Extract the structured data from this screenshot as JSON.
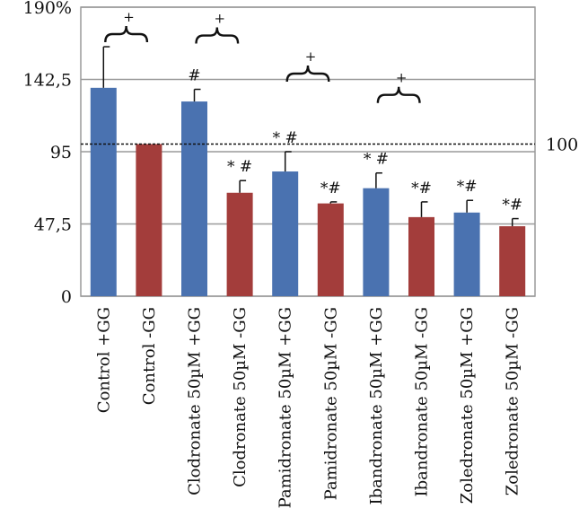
{
  "chart_data": {
    "type": "bar",
    "ylim": [
      0,
      190
    ],
    "y_ticks": [
      {
        "value": 0,
        "label": "0"
      },
      {
        "value": 47.5,
        "label": "47,5"
      },
      {
        "value": 95,
        "label": "95"
      },
      {
        "value": 142.5,
        "label": "142,5"
      },
      {
        "value": 190,
        "label": "190%"
      }
    ],
    "grid": true,
    "reference_line": {
      "value": 100,
      "label": "100",
      "style": "dashed"
    },
    "colors": {
      "+GG": "#4a72b0",
      "-GG": "#a33d3b"
    },
    "bars": [
      {
        "category": "Control +GG",
        "group": "+GG",
        "value": 137,
        "error": 27,
        "annotation": ""
      },
      {
        "category": "Control -GG",
        "group": "-GG",
        "value": 100,
        "error": 0,
        "annotation": ""
      },
      {
        "category": "Clodronate 50µM +GG",
        "group": "+GG",
        "value": 128,
        "error": 8,
        "annotation": "#"
      },
      {
        "category": "Clodronate 50µM -GG",
        "group": "-GG",
        "value": 68,
        "error": 8,
        "annotation": "* #"
      },
      {
        "category": "Pamidronate 50µM +GG",
        "group": "+GG",
        "value": 82,
        "error": 13,
        "annotation": "* #"
      },
      {
        "category": "Pamidronate 50µM -GG",
        "group": "-GG",
        "value": 61,
        "error": 1,
        "annotation": "*#"
      },
      {
        "category": "Ibandronate 50µM +GG",
        "group": "+GG",
        "value": 71,
        "error": 10,
        "annotation": "* #"
      },
      {
        "category": "Ibandronate 50µM -GG",
        "group": "-GG",
        "value": 52,
        "error": 10,
        "annotation": "*#"
      },
      {
        "category": "Zoledronate 50µM +GG",
        "group": "+GG",
        "value": 55,
        "error": 8,
        "annotation": "*#"
      },
      {
        "category": "Zoledronate 50µM -GG",
        "group": "-GG",
        "value": 46,
        "error": 5,
        "annotation": "*#"
      }
    ],
    "brackets": [
      {
        "pair": [
          0,
          1
        ],
        "label": "+"
      },
      {
        "pair": [
          2,
          3
        ],
        "label": "+"
      },
      {
        "pair": [
          4,
          5
        ],
        "label": "+"
      },
      {
        "pair": [
          6,
          7
        ],
        "label": "+"
      }
    ]
  }
}
